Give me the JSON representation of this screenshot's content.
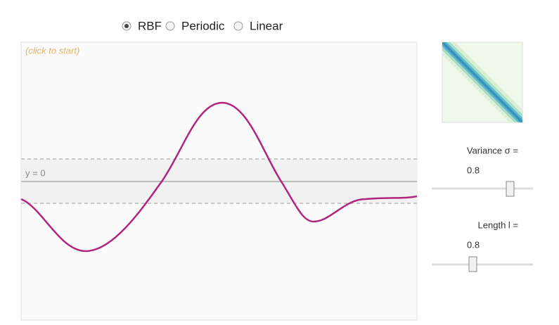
{
  "modes": [
    "RBF",
    "Periodic",
    "Linear"
  ],
  "selected": "RBF",
  "hint": "(click to start)",
  "zero_label": "y = 0",
  "sliders": [
    {
      "label": "Variance σ =",
      "value": 0.8
    },
    {
      "label": "Length l =",
      "value": 0.8
    }
  ]
}
